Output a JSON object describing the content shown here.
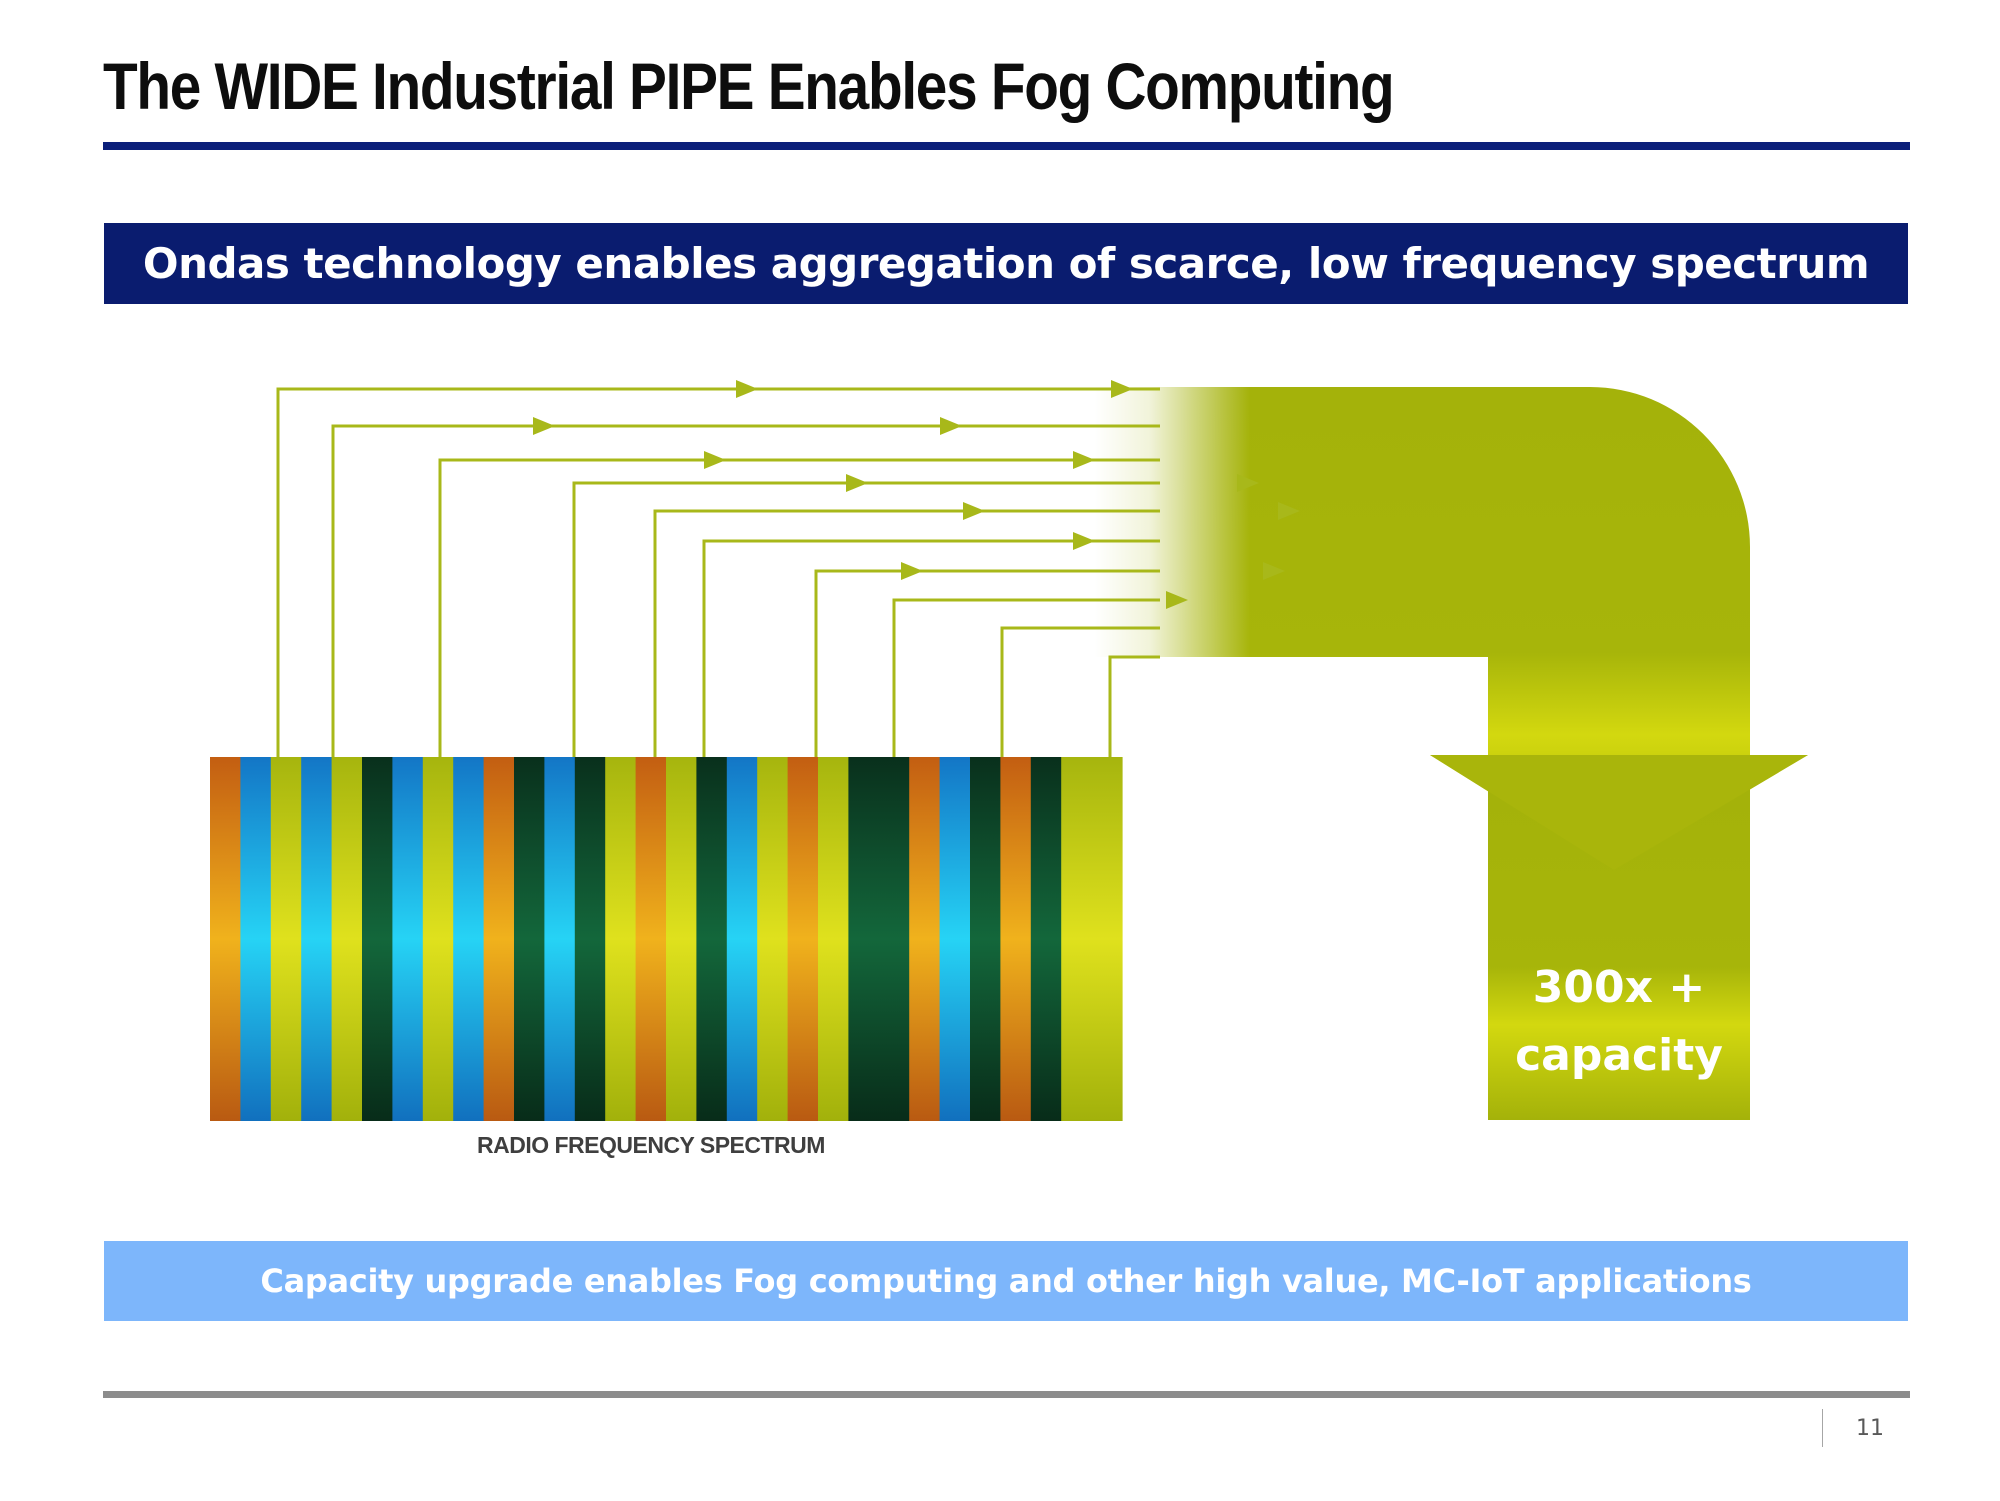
{
  "slide": {
    "title": "The WIDE Industrial PIPE Enables Fog Computing",
    "banner_top": "Ondas technology enables aggregation of scarce, low frequency spectrum",
    "banner_bottom": "Capacity upgrade enables Fog computing and other high value, MC-IoT applications",
    "page_number": "11"
  },
  "diagram": {
    "spectrum_label": "RADIO FREQUENCY SPECTRUM",
    "capacity_line1": "300x +",
    "capacity_line2": "capacity",
    "spectrum_band_colors": [
      "orange",
      "blue",
      "yellow",
      "blue",
      "yellow",
      "dark",
      "blue",
      "yellow",
      "blue",
      "orange",
      "dark",
      "blue",
      "dark",
      "yellow",
      "orange",
      "yellow",
      "dark",
      "blue",
      "yellow",
      "orange",
      "yellow",
      "dark",
      "dark",
      "orange",
      "blue",
      "dark",
      "orange",
      "dark",
      "yellow",
      "yellow"
    ],
    "colors": {
      "line_green": "#a8b81a",
      "arrow_green": "#a9b50b",
      "arrow_light": "#d4d80e",
      "orange": "#d97a1c",
      "blue": "#1590d6",
      "yellow": "#b7c411",
      "dark": "#0e3b26"
    }
  }
}
